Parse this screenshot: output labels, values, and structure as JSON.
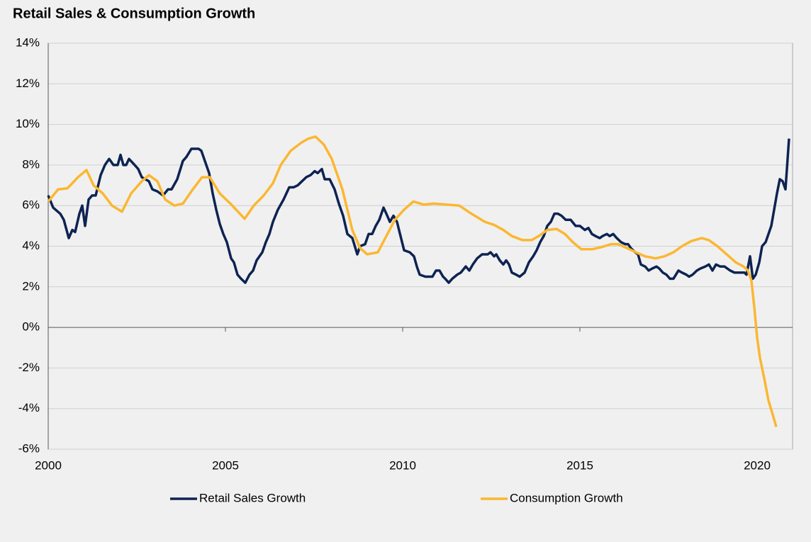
{
  "chart_data": {
    "type": "line",
    "title": "Retail Sales & Consumption Growth",
    "xlim": [
      2000,
      2021
    ],
    "xticks": [
      2000,
      2005,
      2010,
      2015,
      2020
    ],
    "ylim": [
      -6,
      14
    ],
    "yticks": [
      {
        "value": -6,
        "label": "-6%"
      },
      {
        "value": -4,
        "label": "-4%"
      },
      {
        "value": -2,
        "label": "-2%"
      },
      {
        "value": 0,
        "label": "0%"
      },
      {
        "value": 2,
        "label": "2%"
      },
      {
        "value": 4,
        "label": "4%"
      },
      {
        "value": 6,
        "label": "6%"
      },
      {
        "value": 8,
        "label": "8%"
      },
      {
        "value": 10,
        "label": "10%"
      },
      {
        "value": 12,
        "label": "12%"
      },
      {
        "value": 14,
        "label": "14%"
      }
    ],
    "grid": true,
    "legend": "bottom",
    "series": [
      {
        "name": "Retail Sales Growth",
        "color": "#0d2352",
        "x": [
          2000.0,
          2000.14,
          2000.34,
          2000.44,
          2000.58,
          2000.68,
          2000.76,
          2000.88,
          2000.96,
          2001.04,
          2001.14,
          2001.24,
          2001.34,
          2001.48,
          2001.6,
          2001.72,
          2001.84,
          2001.96,
          2002.04,
          2002.12,
          2002.2,
          2002.28,
          2002.44,
          2002.54,
          2002.64,
          2002.84,
          2002.94,
          2003.08,
          2003.24,
          2003.38,
          2003.48,
          2003.64,
          2003.8,
          2003.9,
          2004.04,
          2004.24,
          2004.32,
          2004.44,
          2004.54,
          2004.64,
          2004.74,
          2004.84,
          2004.94,
          2005.04,
          2005.16,
          2005.24,
          2005.34,
          2005.44,
          2005.56,
          2005.68,
          2005.78,
          2005.88,
          2006.04,
          2006.14,
          2006.24,
          2006.34,
          2006.48,
          2006.64,
          2006.8,
          2006.92,
          2007.04,
          2007.16,
          2007.28,
          2007.4,
          2007.52,
          2007.6,
          2007.72,
          2007.8,
          2007.94,
          2008.08,
          2008.2,
          2008.32,
          2008.44,
          2008.58,
          2008.72,
          2008.8,
          2008.94,
          2009.04,
          2009.14,
          2009.24,
          2009.34,
          2009.46,
          2009.54,
          2009.64,
          2009.74,
          2009.84,
          2009.94,
          2010.04,
          2010.2,
          2010.32,
          2010.4,
          2010.48,
          2010.64,
          2010.76,
          2010.84,
          2010.94,
          2011.04,
          2011.14,
          2011.2,
          2011.3,
          2011.4,
          2011.54,
          2011.64,
          2011.78,
          2011.88,
          2011.98,
          2012.1,
          2012.24,
          2012.4,
          2012.48,
          2012.58,
          2012.64,
          2012.74,
          2012.84,
          2012.92,
          2013.0,
          2013.08,
          2013.2,
          2013.3,
          2013.44,
          2013.56,
          2013.68,
          2013.78,
          2013.88,
          2013.98,
          2014.08,
          2014.18,
          2014.28,
          2014.38,
          2014.48,
          2014.6,
          2014.74,
          2014.88,
          2015.0,
          2015.14,
          2015.24,
          2015.34,
          2015.44,
          2015.56,
          2015.64,
          2015.76,
          2015.84,
          2015.94,
          2016.04,
          2016.16,
          2016.28,
          2016.36,
          2016.44,
          2016.56,
          2016.64,
          2016.72,
          2016.84,
          2016.94,
          2017.04,
          2017.16,
          2017.24,
          2017.34,
          2017.44,
          2017.54,
          2017.64,
          2017.78,
          2017.88,
          2018.0,
          2018.08,
          2018.18,
          2018.3,
          2018.4,
          2018.54,
          2018.64,
          2018.74,
          2018.84,
          2018.96,
          2019.08,
          2019.24,
          2019.36,
          2019.5,
          2019.64,
          2019.7,
          2019.8,
          2019.88,
          2019.96,
          2020.06,
          2020.14,
          2020.24,
          2020.32,
          2020.4,
          2020.48,
          2020.56,
          2020.64,
          2020.72,
          2020.8,
          2020.9
        ],
        "values": [
          6.5,
          5.9,
          5.6,
          5.3,
          4.4,
          4.8,
          4.7,
          5.6,
          6.0,
          5.0,
          6.3,
          6.5,
          6.5,
          7.5,
          8.0,
          8.3,
          8.0,
          8.0,
          8.5,
          8.0,
          8.0,
          8.3,
          8.0,
          7.8,
          7.4,
          7.2,
          6.8,
          6.7,
          6.5,
          6.8,
          6.8,
          7.3,
          8.2,
          8.4,
          8.8,
          8.8,
          8.7,
          8.1,
          7.6,
          6.6,
          5.8,
          5.1,
          4.6,
          4.2,
          3.4,
          3.2,
          2.6,
          2.4,
          2.2,
          2.6,
          2.8,
          3.3,
          3.7,
          4.2,
          4.6,
          5.2,
          5.8,
          6.3,
          6.9,
          6.9,
          7.0,
          7.2,
          7.4,
          7.5,
          7.7,
          7.6,
          7.8,
          7.3,
          7.3,
          6.8,
          6.1,
          5.5,
          4.6,
          4.4,
          3.6,
          4.0,
          4.1,
          4.6,
          4.6,
          5.0,
          5.3,
          5.9,
          5.6,
          5.2,
          5.5,
          5.2,
          4.5,
          3.8,
          3.7,
          3.5,
          3.0,
          2.6,
          2.5,
          2.5,
          2.5,
          2.8,
          2.8,
          2.5,
          2.4,
          2.2,
          2.4,
          2.6,
          2.7,
          3.0,
          2.8,
          3.1,
          3.4,
          3.6,
          3.6,
          3.7,
          3.5,
          3.6,
          3.3,
          3.1,
          3.3,
          3.1,
          2.7,
          2.6,
          2.5,
          2.7,
          3.2,
          3.5,
          3.8,
          4.2,
          4.5,
          5.0,
          5.2,
          5.6,
          5.6,
          5.5,
          5.3,
          5.3,
          5.0,
          5.0,
          4.8,
          4.9,
          4.6,
          4.5,
          4.4,
          4.5,
          4.6,
          4.5,
          4.6,
          4.4,
          4.2,
          4.1,
          4.1,
          3.9,
          3.7,
          3.6,
          3.1,
          3.0,
          2.8,
          2.9,
          3.0,
          2.9,
          2.7,
          2.6,
          2.4,
          2.4,
          2.8,
          2.7,
          2.6,
          2.5,
          2.6,
          2.8,
          2.9,
          3.0,
          3.1,
          2.8,
          3.1,
          3.0,
          3.0,
          2.8,
          2.7,
          2.7,
          2.7,
          2.6,
          3.5,
          2.4,
          2.6,
          3.2,
          4.0,
          4.2,
          4.6,
          5.0,
          5.8,
          6.6,
          7.3,
          7.2,
          6.8,
          9.3
        ]
      },
      {
        "name": "Consumption Growth",
        "color": "#fbb731",
        "x": [
          2000.0,
          2000.14,
          2000.28,
          2000.54,
          2000.68,
          2000.84,
          2001.08,
          2001.28,
          2001.54,
          2001.8,
          2002.08,
          2002.34,
          2002.64,
          2002.84,
          2003.08,
          2003.3,
          2003.56,
          2003.8,
          2004.08,
          2004.34,
          2004.56,
          2004.84,
          2005.14,
          2005.54,
          2005.8,
          2006.08,
          2006.34,
          2006.56,
          2006.84,
          2007.14,
          2007.34,
          2007.54,
          2007.78,
          2008.0,
          2008.3,
          2008.58,
          2008.8,
          2009.0,
          2009.3,
          2009.54,
          2009.78,
          2010.04,
          2010.3,
          2010.6,
          2010.88,
          2011.24,
          2011.6,
          2011.94,
          2012.32,
          2012.58,
          2012.84,
          2013.08,
          2013.38,
          2013.64,
          2013.84,
          2014.08,
          2014.34,
          2014.58,
          2014.8,
          2015.04,
          2015.34,
          2015.6,
          2015.88,
          2016.08,
          2016.34,
          2016.58,
          2016.84,
          2017.14,
          2017.38,
          2017.64,
          2017.88,
          2018.14,
          2018.34,
          2018.44,
          2018.64,
          2018.88,
          2019.14,
          2019.4,
          2019.62,
          2019.74,
          2019.84,
          2019.92,
          2020.0,
          2020.08,
          2020.2,
          2020.32,
          2020.44,
          2020.54
        ],
        "values": [
          6.2,
          6.5,
          6.8,
          6.85,
          7.1,
          7.4,
          7.75,
          7.0,
          6.6,
          6.0,
          5.7,
          6.6,
          7.2,
          7.5,
          7.2,
          6.3,
          6.0,
          6.1,
          6.8,
          7.4,
          7.4,
          6.6,
          6.1,
          5.35,
          6.0,
          6.5,
          7.1,
          8.0,
          8.7,
          9.1,
          9.3,
          9.4,
          9.0,
          8.3,
          6.8,
          4.8,
          3.9,
          3.6,
          3.7,
          4.5,
          5.3,
          5.8,
          6.2,
          6.05,
          6.1,
          6.05,
          6.0,
          5.6,
          5.2,
          5.05,
          4.8,
          4.5,
          4.3,
          4.3,
          4.5,
          4.8,
          4.85,
          4.6,
          4.2,
          3.85,
          3.85,
          3.95,
          4.1,
          4.1,
          3.9,
          3.7,
          3.5,
          3.4,
          3.5,
          3.7,
          4.0,
          4.25,
          4.35,
          4.4,
          4.3,
          4.0,
          3.6,
          3.2,
          3.0,
          2.8,
          2.3,
          1.0,
          -0.5,
          -1.5,
          -2.5,
          -3.6,
          -4.3,
          -4.9
        ]
      }
    ]
  }
}
